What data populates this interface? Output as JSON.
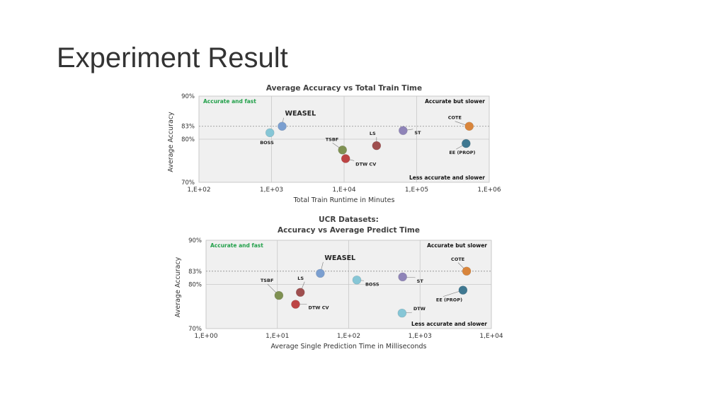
{
  "slide": {
    "title": "Experiment Result"
  },
  "chart_data": [
    {
      "type": "scatter",
      "title": "Average Accuracy vs Total Train Time",
      "xlabel": "Total Train Runtime in Minutes",
      "ylabel": "Average Accuracy",
      "x_scale": "log",
      "xlim": [
        100,
        1000000
      ],
      "ylim": [
        70,
        90
      ],
      "x_ticks": [
        "1,E+02",
        "1,E+03",
        "1,E+04",
        "1,E+05",
        "1,E+06"
      ],
      "y_ticks": [
        "70%",
        "80%",
        "83%",
        "90%"
      ],
      "y_tick_values": [
        70,
        80,
        83,
        90
      ],
      "grid": true,
      "reference_line_y": 83,
      "quadrant_labels": {
        "top_left": "Accurate and fast",
        "top_right": "Accurate but slower",
        "bottom_right": "Less accurate and slower"
      },
      "points": [
        {
          "name": "WEASEL",
          "x": 1400,
          "y": 83.0,
          "color": "#7b9fd0"
        },
        {
          "name": "BOSS",
          "x": 950,
          "y": 81.5,
          "color": "#86c6d6"
        },
        {
          "name": "TSBF",
          "x": 9500,
          "y": 77.5,
          "color": "#7f9152"
        },
        {
          "name": "DTW CV",
          "x": 10500,
          "y": 75.5,
          "color": "#bd4444"
        },
        {
          "name": "LS",
          "x": 28000,
          "y": 78.5,
          "color": "#9f4f4f"
        },
        {
          "name": "ST",
          "x": 65000,
          "y": 82.0,
          "color": "#8f84b8"
        },
        {
          "name": "COTE",
          "x": 530000,
          "y": 83.0,
          "color": "#d9853b"
        },
        {
          "name": "EE (PROP)",
          "x": 480000,
          "y": 79.0,
          "color": "#3f7891"
        }
      ],
      "colors": {
        "background": "#f0f0f0",
        "grid": "#c8c8c8",
        "green_label": "#22a04a"
      }
    },
    {
      "type": "scatter",
      "title": "UCR Datasets:\nAccuracy vs Average Predict Time",
      "title_lines": [
        "UCR Datasets:",
        "Accuracy vs Average Predict Time"
      ],
      "xlabel": "Average Single Prediction Time in Milliseconds",
      "ylabel": "Average Accuracy",
      "x_scale": "log",
      "xlim": [
        1,
        10000
      ],
      "ylim": [
        70,
        90
      ],
      "x_ticks": [
        "1,E+00",
        "1,E+01",
        "1,E+02",
        "1,E+03",
        "1,E+04"
      ],
      "y_ticks": [
        "70%",
        "80%",
        "83%",
        "90%"
      ],
      "y_tick_values": [
        70,
        80,
        83,
        90
      ],
      "grid": true,
      "reference_line_y": 83,
      "quadrant_labels": {
        "top_left": "Accurate and fast",
        "top_right": "Accurate but slower",
        "bottom_right": "Less accurate and slower"
      },
      "points": [
        {
          "name": "WEASEL",
          "x": 40,
          "y": 82.5,
          "color": "#7b9fd0"
        },
        {
          "name": "BOSS",
          "x": 130,
          "y": 81.0,
          "color": "#86c6d6"
        },
        {
          "name": "TSBF",
          "x": 10.5,
          "y": 77.5,
          "color": "#7f9152"
        },
        {
          "name": "LS",
          "x": 21,
          "y": 78.2,
          "color": "#9f4f4f"
        },
        {
          "name": "DTW CV",
          "x": 18,
          "y": 75.5,
          "color": "#bd4444"
        },
        {
          "name": "ST",
          "x": 570,
          "y": 81.7,
          "color": "#8f84b8"
        },
        {
          "name": "COTE",
          "x": 4500,
          "y": 83.0,
          "color": "#d9853b"
        },
        {
          "name": "EE (PROP)",
          "x": 4000,
          "y": 78.7,
          "color": "#3f7891"
        },
        {
          "name": "DTW",
          "x": 560,
          "y": 73.5,
          "color": "#86c6d6"
        }
      ],
      "colors": {
        "background": "#f0f0f0",
        "grid": "#c8c8c8",
        "green_label": "#22a04a"
      }
    }
  ]
}
